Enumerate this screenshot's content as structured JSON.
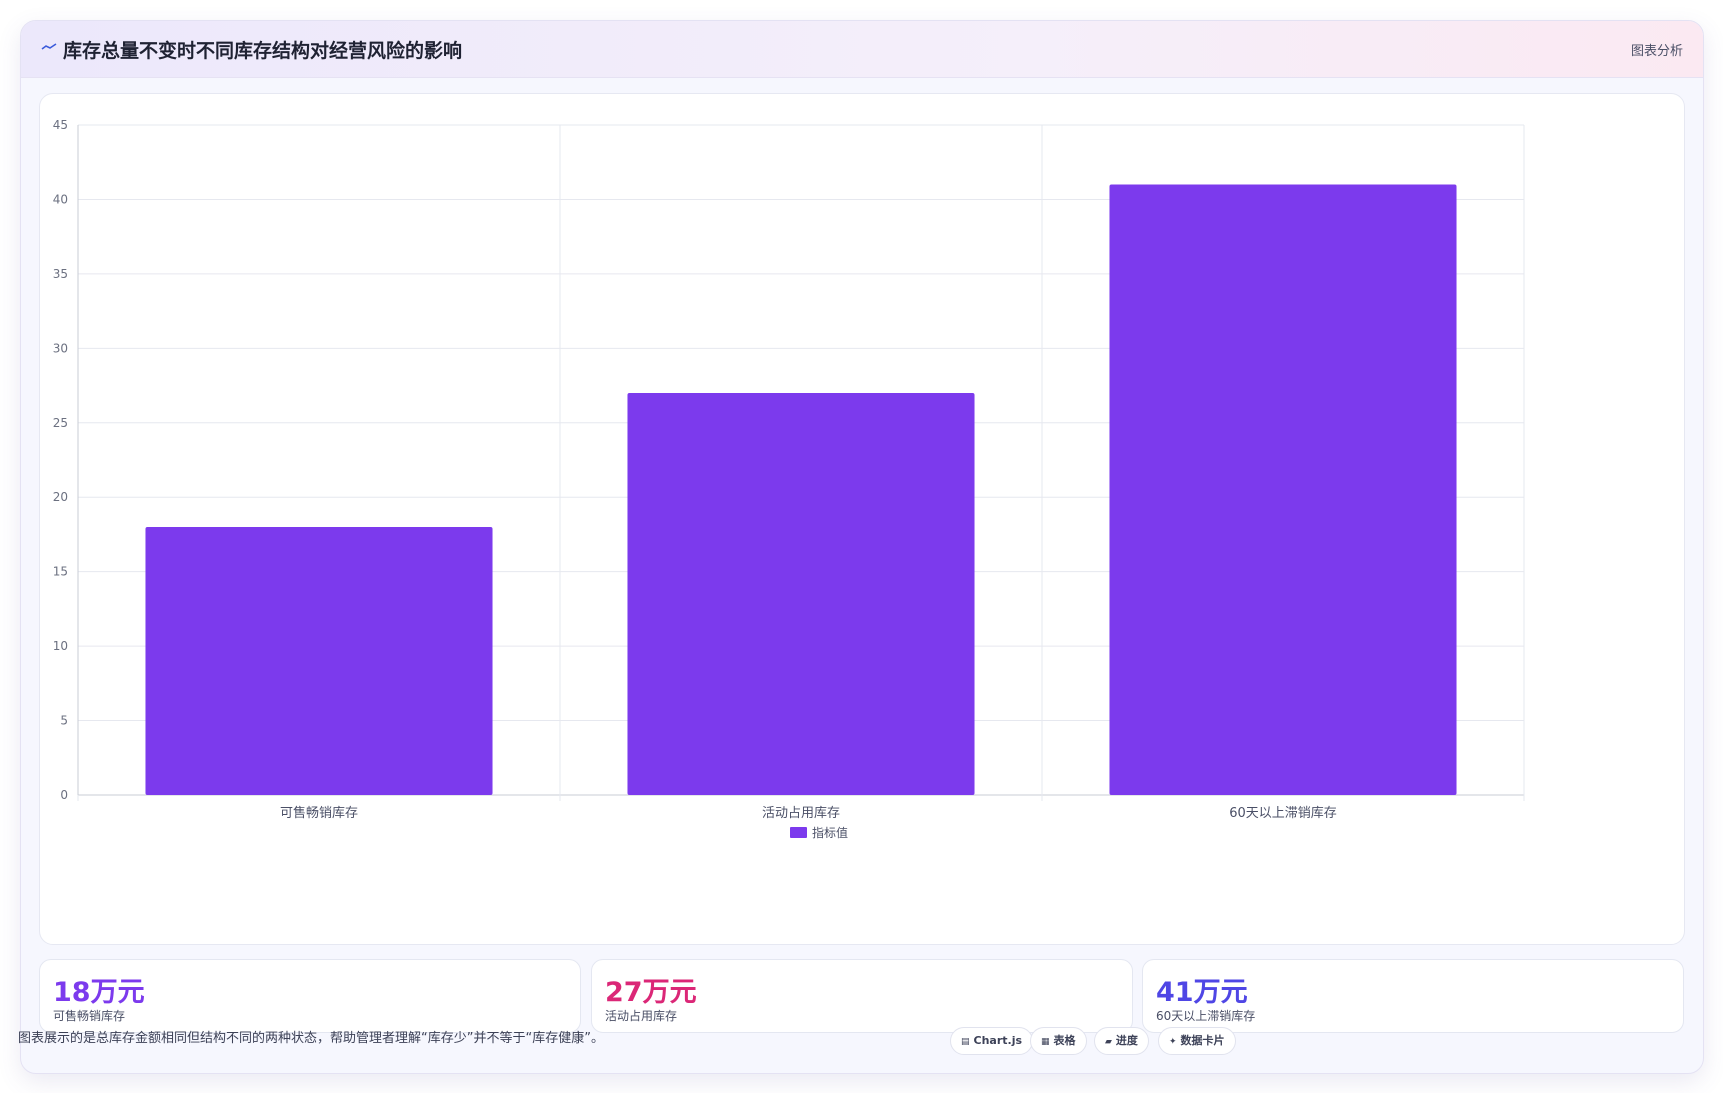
{
  "header": {
    "title": "库存总量不变时不同库存结构对经营风险的影响",
    "link_label": "图表分析",
    "icon": "trend-line-icon"
  },
  "chart_data": {
    "type": "bar",
    "title": "",
    "xlabel": "",
    "ylabel": "",
    "categories": [
      "可售畅销库存",
      "活动占用库存",
      "60天以上滞销库存"
    ],
    "series": [
      {
        "name": "指标值",
        "values": [
          18,
          27,
          41
        ],
        "color": "#7c3aed"
      }
    ],
    "ylim": [
      0,
      45
    ],
    "yticks": [
      0,
      5,
      10,
      15,
      20,
      25,
      30,
      35,
      40,
      45
    ],
    "grid": true,
    "legend": "bottom-center"
  },
  "stats": [
    {
      "value": "18万元",
      "label": "可售畅销库存",
      "color": "#7c3aed"
    },
    {
      "value": "27万元",
      "label": "活动占用库存",
      "color": "#db2777"
    },
    {
      "value": "41万元",
      "label": "60天以上滞销库存",
      "color": "#4f46e5"
    }
  ],
  "footnote": "图表展示的是总库存金额相同但结构不同的两种状态，帮助管理者理解“库存少”并不等于“库存健康”。",
  "tags": [
    {
      "label": "Chart.js",
      "icon": "chart-icon"
    },
    {
      "label": "表格",
      "icon": "table-icon"
    },
    {
      "label": "进度",
      "icon": "progress-icon"
    },
    {
      "label": "数据卡片",
      "icon": "card-icon"
    }
  ]
}
